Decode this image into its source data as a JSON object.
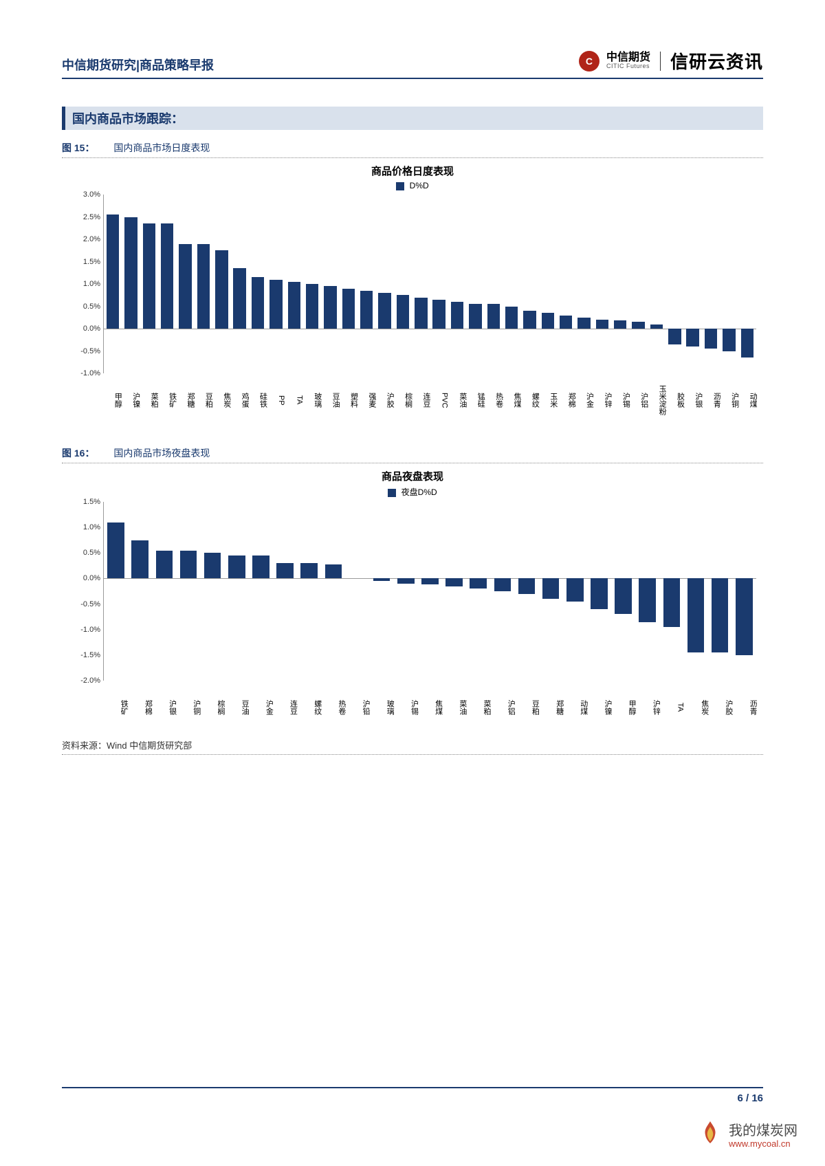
{
  "header": {
    "left": "中信期货研究|商品策略早报",
    "logo_symbol": "C",
    "logo_cn": "中信期货",
    "logo_en": "CITIC Futures",
    "logo_right": "信研云资讯"
  },
  "section_title": "国内商品市场跟踪：",
  "chart1": {
    "caption_label": "图 15：",
    "caption_text": "国内商品市场日度表现",
    "title": "商品价格日度表现",
    "legend_label": "D%D",
    "bar_color": "#1a3a6e",
    "y_min": -1.0,
    "y_max": 3.0,
    "y_step": 0.5,
    "y_suffix": "%",
    "categories": [
      "甲醇",
      "沪镍",
      "菜粕",
      "铁矿",
      "郑糖",
      "豆粕",
      "焦炭",
      "鸡蛋",
      "硅铁",
      "PP",
      "TA",
      "玻璃",
      "豆油",
      "塑料",
      "强麦",
      "沪胶",
      "棕榈",
      "连豆",
      "PVC",
      "菜油",
      "锰硅",
      "热卷",
      "焦煤",
      "螺纹",
      "玉米",
      "郑棉",
      "沪金",
      "沪锌",
      "沪锡",
      "沪铝",
      "玉米淀粉",
      "胶板",
      "沪银",
      "沥青",
      "沪铜",
      "动煤"
    ],
    "latin": {
      "9": true,
      "10": true,
      "18": true
    },
    "values": [
      2.55,
      2.5,
      2.35,
      2.35,
      1.9,
      1.9,
      1.75,
      1.35,
      1.15,
      1.1,
      1.05,
      1.0,
      0.95,
      0.9,
      0.85,
      0.8,
      0.75,
      0.7,
      0.65,
      0.6,
      0.55,
      0.55,
      0.5,
      0.4,
      0.35,
      0.3,
      0.25,
      0.2,
      0.18,
      0.15,
      0.1,
      -0.35,
      -0.4,
      -0.45,
      -0.5,
      -0.65
    ]
  },
  "chart2": {
    "caption_label": "图 16：",
    "caption_text": "国内商品市场夜盘表现",
    "title": "商品夜盘表现",
    "legend_label": "夜盘D%D",
    "bar_color": "#1a3a6e",
    "y_min": -2.0,
    "y_max": 1.5,
    "y_step": 0.5,
    "y_suffix": "%",
    "categories": [
      "铁矿",
      "郑棉",
      "沪银",
      "沪铜",
      "棕榈",
      "豆油",
      "沪金",
      "连豆",
      "螺纹",
      "热卷",
      "沪铅",
      "玻璃",
      "沪锡",
      "焦煤",
      "菜油",
      "菜粕",
      "沪铝",
      "豆粕",
      "郑糖",
      "动煤",
      "沪镍",
      "甲醇",
      "沪锌",
      "TA",
      "焦炭",
      "沪胶",
      "沥青"
    ],
    "latin": {
      "23": true
    },
    "values": [
      1.1,
      0.75,
      0.55,
      0.55,
      0.5,
      0.45,
      0.45,
      0.3,
      0.3,
      0.28,
      0.0,
      -0.05,
      -0.1,
      -0.12,
      -0.15,
      -0.2,
      -0.25,
      -0.3,
      -0.4,
      -0.45,
      -0.6,
      -0.7,
      -0.85,
      -0.95,
      -1.45,
      -1.45,
      -1.5
    ]
  },
  "source": "资料来源：Wind  中信期货研究部",
  "footer": {
    "page": "6 / 16"
  },
  "watermark": {
    "cn": "我的煤炭网",
    "url": "www.mycoal.cn"
  }
}
